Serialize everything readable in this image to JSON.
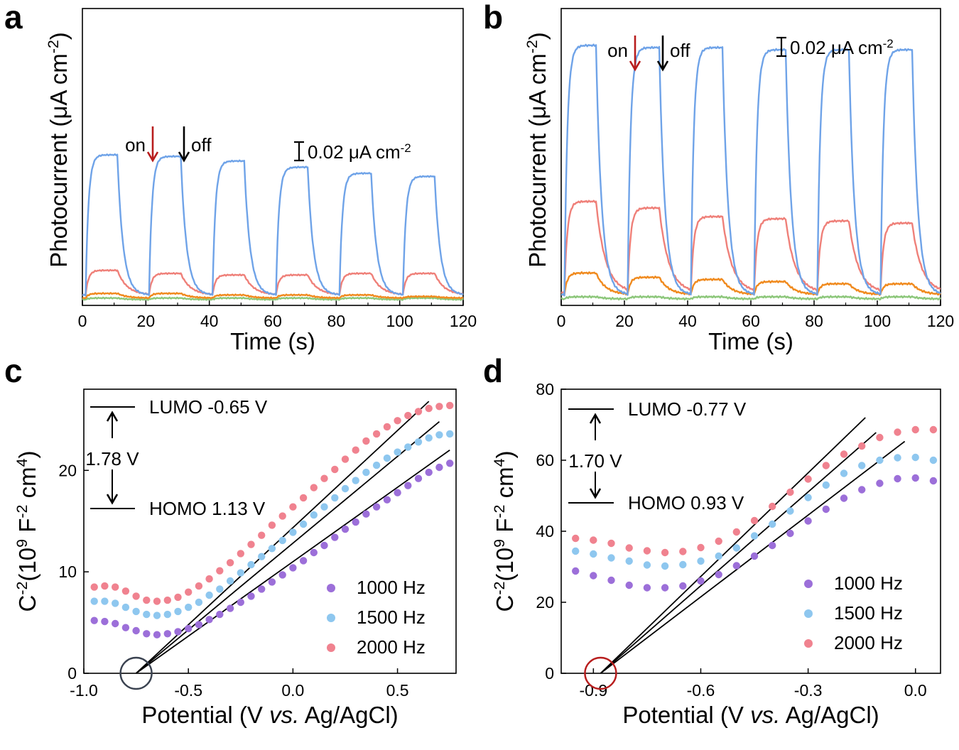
{
  "colors": {
    "blue": "#6fa3e8",
    "red_curve": "#ef8079",
    "orange": "#f08a1e",
    "green": "#8dc77b",
    "purple": "#9c6fd9",
    "light_blue": "#8ec7ef",
    "pink": "#f0828f",
    "arrow_red": "#b81d1d",
    "circle_dark": "#3a4250",
    "circle_red": "#b81d1d"
  },
  "chart_data": [
    {
      "panel": "a",
      "type": "line",
      "xlabel": "Time (s)",
      "ylabel": "Photocurrent (μA cm⁻²)",
      "xlim": [
        0,
        120
      ],
      "xticks": [
        "0",
        "20",
        "40",
        "60",
        "80",
        "100",
        "120"
      ],
      "scale_bar": "0.02 μA cm⁻²",
      "on_label": "on",
      "off_label": "off",
      "period_s": 20,
      "light_on_s": 10,
      "series": [
        {
          "color_key": "blue",
          "baseline": 0.004,
          "plateaus": [
            0.095,
            0.094,
            0.091,
            0.087,
            0.083,
            0.081
          ]
        },
        {
          "color_key": "red_curve",
          "baseline": 0.004,
          "plateaus": [
            0.02,
            0.018,
            0.017,
            0.017,
            0.018,
            0.018
          ]
        },
        {
          "color_key": "orange",
          "baseline": 0.002,
          "plateaus": [
            0.005,
            0.005,
            0.004,
            0.004,
            0.004,
            0.003
          ]
        },
        {
          "color_key": "green",
          "baseline": 0.001,
          "plateaus": [
            0.002,
            0.002,
            0.002,
            0.002,
            0.002,
            0.002
          ]
        }
      ]
    },
    {
      "panel": "b",
      "type": "line",
      "xlabel": "Time (s)",
      "ylabel": "Photocurrent (μA cm⁻²)",
      "xlim": [
        0,
        120
      ],
      "xticks": [
        "0",
        "20",
        "40",
        "60",
        "80",
        "100",
        "120"
      ],
      "scale_bar": "0.02 μA cm⁻²",
      "on_label": "on",
      "off_label": "off",
      "period_s": 20,
      "light_on_s": 10,
      "series": [
        {
          "color_key": "blue",
          "baseline": 0.003,
          "plateaus": [
            0.118,
            0.117,
            0.117,
            0.116,
            0.116,
            0.116
          ]
        },
        {
          "color_key": "red_curve",
          "baseline": 0.004,
          "plateaus": [
            0.046,
            0.043,
            0.039,
            0.038,
            0.037,
            0.036
          ]
        },
        {
          "color_key": "orange",
          "baseline": 0.003,
          "plateaus": [
            0.013,
            0.011,
            0.01,
            0.009,
            0.008,
            0.008
          ]
        },
        {
          "color_key": "green",
          "baseline": 0.001,
          "plateaus": [
            0.002,
            0.002,
            0.002,
            0.002,
            0.002,
            0.002
          ]
        }
      ]
    },
    {
      "panel": "c",
      "type": "scatter",
      "xlabel": "Potential (V vs. Ag/AgCl)",
      "ylabel": "C⁻²(10⁹ F⁻² cm⁴)",
      "xlim": [
        -1.0,
        0.78
      ],
      "ylim": [
        0,
        28
      ],
      "xticks": [
        "-1.0",
        "-0.5",
        "0.0",
        "0.5"
      ],
      "yticks": [
        "0",
        "10",
        "20"
      ],
      "lumo_label": "LUMO -0.65 V",
      "homo_label": "HOMO 1.13 V",
      "gap_label": "1.78 V",
      "x_intercept": -0.75,
      "x": [
        -0.95,
        -0.9,
        -0.85,
        -0.8,
        -0.75,
        -0.7,
        -0.65,
        -0.6,
        -0.55,
        -0.5,
        -0.45,
        -0.4,
        -0.35,
        -0.3,
        -0.25,
        -0.2,
        -0.15,
        -0.1,
        -0.05,
        0.0,
        0.05,
        0.1,
        0.15,
        0.2,
        0.25,
        0.3,
        0.35,
        0.4,
        0.45,
        0.5,
        0.55,
        0.6,
        0.65,
        0.7,
        0.75
      ],
      "series": [
        {
          "name": "1000 Hz",
          "color_key": "purple",
          "values": [
            5.2,
            5.1,
            4.9,
            4.5,
            4.2,
            3.9,
            3.8,
            3.9,
            4.1,
            4.4,
            4.8,
            5.3,
            5.8,
            6.4,
            7.0,
            7.6,
            8.3,
            9.0,
            9.7,
            10.4,
            11.1,
            11.9,
            12.6,
            13.4,
            14.2,
            14.9,
            15.7,
            16.4,
            17.1,
            17.8,
            18.5,
            19.2,
            19.8,
            20.3,
            20.7
          ]
        },
        {
          "name": "1500 Hz",
          "color_key": "light_blue",
          "values": [
            7.1,
            7.1,
            6.9,
            6.5,
            6.1,
            5.8,
            5.7,
            5.8,
            6.1,
            6.5,
            7.0,
            7.7,
            8.3,
            9.1,
            9.9,
            10.7,
            11.5,
            12.3,
            13.1,
            13.9,
            14.7,
            15.6,
            16.4,
            17.3,
            18.2,
            19.0,
            19.8,
            20.5,
            21.2,
            21.8,
            22.3,
            22.8,
            23.2,
            23.5,
            23.6
          ]
        },
        {
          "name": "2000 Hz",
          "color_key": "pink",
          "values": [
            8.5,
            8.6,
            8.5,
            8.1,
            7.6,
            7.2,
            7.1,
            7.2,
            7.5,
            8.0,
            8.6,
            9.3,
            10.1,
            10.9,
            11.8,
            12.7,
            13.6,
            14.6,
            15.5,
            16.4,
            17.3,
            18.3,
            19.2,
            20.1,
            21.1,
            22.0,
            22.9,
            23.6,
            24.3,
            24.9,
            25.4,
            25.8,
            26.1,
            26.3,
            26.4
          ]
        }
      ],
      "fit_lines": [
        {
          "x": [
            -0.75,
            0.65
          ],
          "y": [
            0,
            26.8
          ]
        },
        {
          "x": [
            -0.75,
            0.7
          ],
          "y": [
            0,
            24.8
          ]
        },
        {
          "x": [
            -0.75,
            0.75
          ],
          "y": [
            0,
            22.0
          ]
        }
      ]
    },
    {
      "panel": "d",
      "type": "scatter",
      "xlabel": "Potential (V vs. Ag/AgCl)",
      "ylabel": "C⁻²(10⁹ F⁻² cm⁴)",
      "xlim": [
        -0.99,
        0.07
      ],
      "ylim": [
        0,
        80
      ],
      "xticks": [
        "-0.9",
        "-0.6",
        "-0.3",
        "0.0"
      ],
      "yticks": [
        "0",
        "20",
        "40",
        "60",
        "80"
      ],
      "lumo_label": "LUMO -0.77 V",
      "homo_label": "HOMO 0.93 V",
      "gap_label": "1.70 V",
      "x_intercept": -0.88,
      "x": [
        -0.95,
        -0.9,
        -0.85,
        -0.8,
        -0.75,
        -0.7,
        -0.65,
        -0.6,
        -0.55,
        -0.5,
        -0.45,
        -0.4,
        -0.35,
        -0.3,
        -0.25,
        -0.2,
        -0.15,
        -0.1,
        -0.05,
        0.0,
        0.05
      ],
      "series": [
        {
          "name": "1000 Hz",
          "color_key": "purple",
          "values": [
            28.8,
            27.5,
            26.2,
            24.8,
            24.1,
            24.1,
            24.6,
            26.0,
            27.8,
            30.3,
            33.0,
            36.0,
            39.4,
            42.9,
            46.2,
            49.3,
            51.7,
            53.5,
            54.8,
            55.0,
            54.2
          ]
        },
        {
          "name": "1500 Hz",
          "color_key": "light_blue",
          "values": [
            34.4,
            33.6,
            32.5,
            31.6,
            30.5,
            30.2,
            30.6,
            31.6,
            33.0,
            35.3,
            38.7,
            42.0,
            45.7,
            49.5,
            53.0,
            56.3,
            58.5,
            60.0,
            60.7,
            60.8,
            60.0
          ]
        },
        {
          "name": "2000 Hz",
          "color_key": "pink",
          "values": [
            38.0,
            37.5,
            36.6,
            35.3,
            34.5,
            34.0,
            34.3,
            35.4,
            37.2,
            39.8,
            43.0,
            47.0,
            51.0,
            54.7,
            58.5,
            61.7,
            64.0,
            66.4,
            67.9,
            68.6,
            68.6
          ]
        }
      ],
      "fit_lines": [
        {
          "x": [
            -0.88,
            -0.14
          ],
          "y": [
            0,
            72.0
          ]
        },
        {
          "x": [
            -0.88,
            -0.11
          ],
          "y": [
            0,
            67.8
          ]
        },
        {
          "x": [
            -0.88,
            -0.03
          ],
          "y": [
            0,
            65.3
          ]
        }
      ]
    }
  ]
}
